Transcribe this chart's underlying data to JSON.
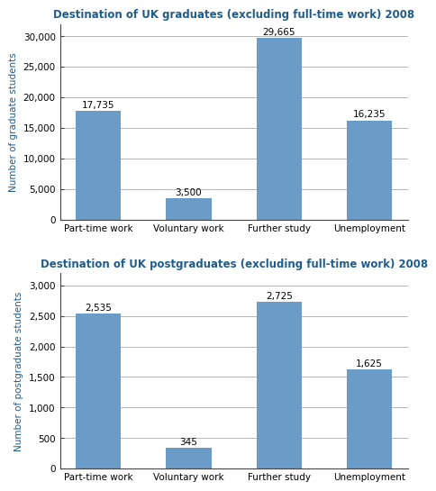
{
  "grad_title": "Destination of UK graduates (excluding full-time work) 2008",
  "postgrad_title": "Destination of UK postgraduates (excluding full-time work) 2008",
  "categories": [
    "Part-time work",
    "Voluntary work",
    "Further study",
    "Unemployment"
  ],
  "grad_values": [
    17735,
    3500,
    29665,
    16235
  ],
  "grad_labels": [
    "17,735",
    "3,500",
    "29,665",
    "16,235"
  ],
  "postgrad_values": [
    2535,
    345,
    2725,
    1625
  ],
  "postgrad_labels": [
    "2,535",
    "345",
    "2,725",
    "1,625"
  ],
  "bar_color": "#6A9CC7",
  "grad_ylabel": "Number of graduate students",
  "postgrad_ylabel": "Number of postgraduate students",
  "grad_ylim": [
    0,
    32000
  ],
  "grad_yticks": [
    0,
    5000,
    10000,
    15000,
    20000,
    25000,
    30000
  ],
  "postgrad_ylim": [
    0,
    3200
  ],
  "postgrad_yticks": [
    0,
    500,
    1000,
    1500,
    2000,
    2500,
    3000
  ],
  "title_color": "#1F5C8B",
  "ylabel_color": "#1F5C8B",
  "axis_color": "#444444",
  "grid_color": "#AAAAAA",
  "background_color": "#FFFFFF",
  "plot_bg_color": "#FFFFFF",
  "title_fontsize": 8.5,
  "label_fontsize": 7.5,
  "tick_fontsize": 7.5,
  "ylabel_fontsize": 7.5
}
